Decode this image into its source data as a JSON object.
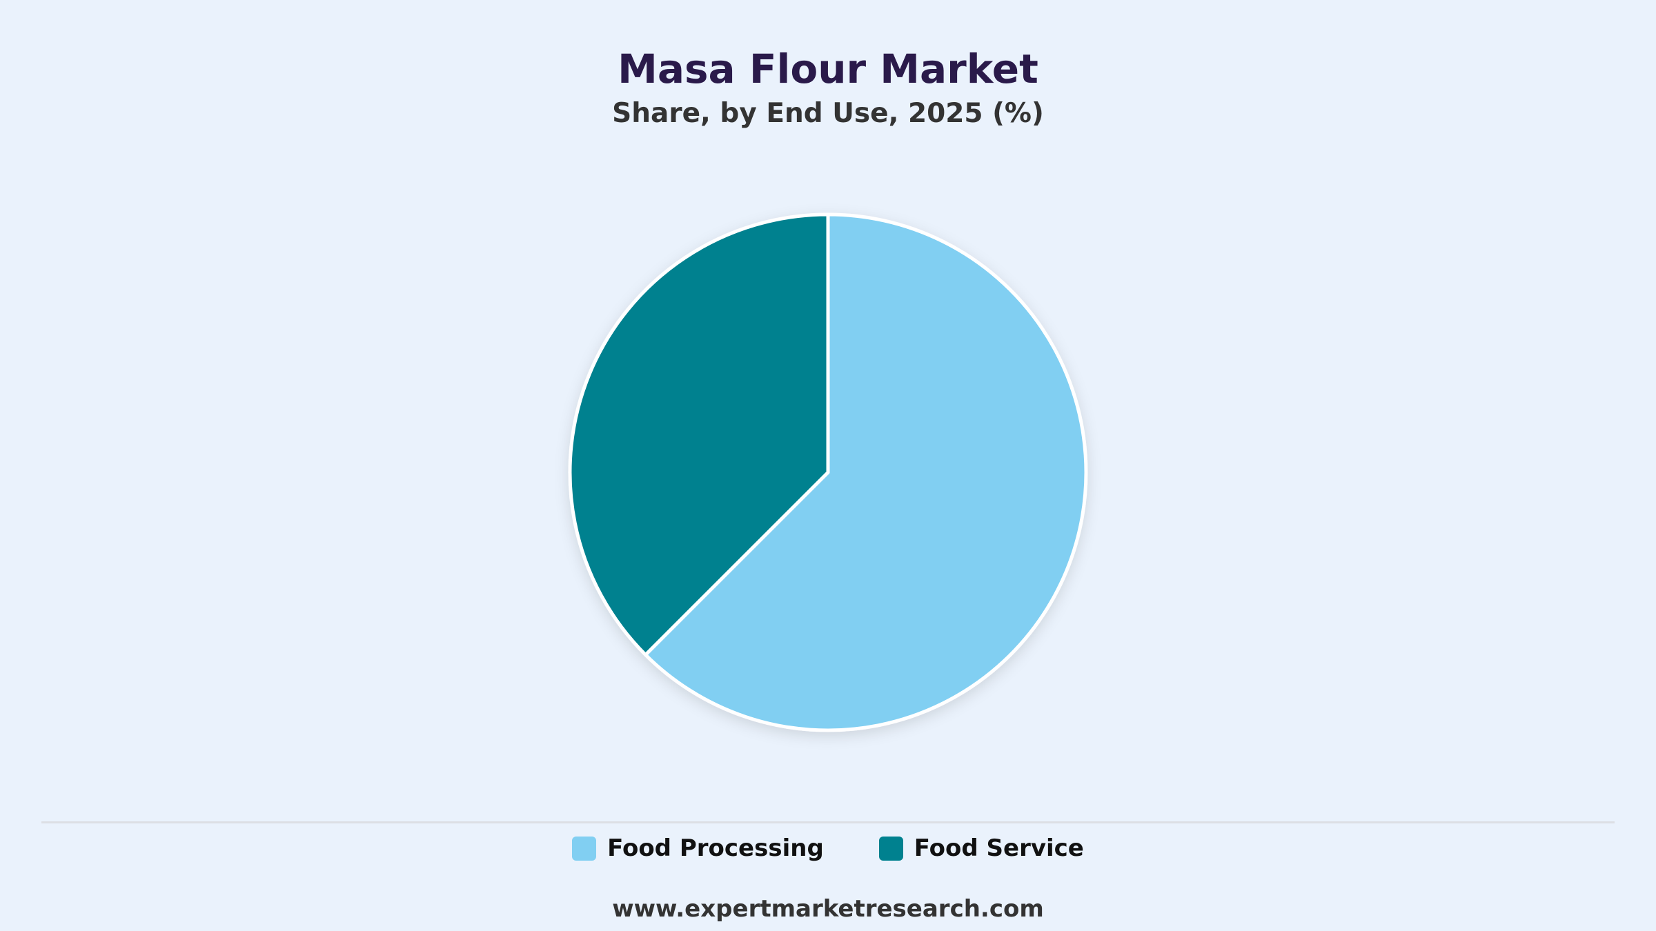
{
  "chart_data": {
    "type": "pie",
    "title": "Masa Flour Market",
    "subtitle": "Share, by End Use, 2025 (%)",
    "categories": [
      "Food Processing",
      "Food Service"
    ],
    "values": [
      62.5,
      37.5
    ],
    "colors": [
      "#81cff2",
      "#00818f"
    ],
    "legend_position": "bottom"
  },
  "footer": {
    "source": "www.expertmarketresearch.com"
  }
}
